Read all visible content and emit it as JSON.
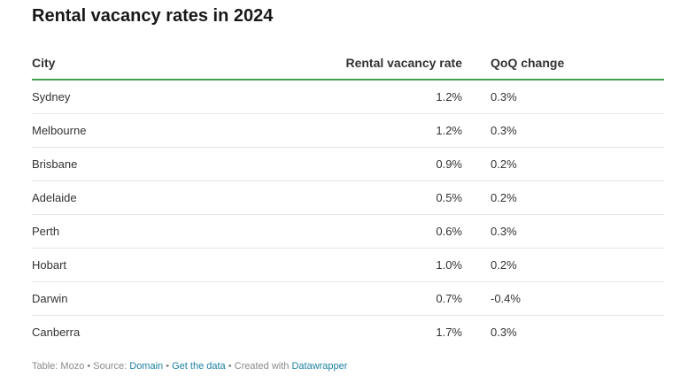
{
  "chart_data": {
    "type": "table",
    "title": "Rental vacancy rates in 2024",
    "columns": [
      "City",
      "Rental vacancy rate",
      "QoQ change"
    ],
    "rows": [
      {
        "city": "Sydney",
        "rate": "1.2%",
        "qoq": "0.3%"
      },
      {
        "city": "Melbourne",
        "rate": "1.2%",
        "qoq": "0.3%"
      },
      {
        "city": "Brisbane",
        "rate": "0.9%",
        "qoq": "0.2%"
      },
      {
        "city": "Adelaide",
        "rate": "0.5%",
        "qoq": "0.2%"
      },
      {
        "city": "Perth",
        "rate": "0.6%",
        "qoq": "0.3%"
      },
      {
        "city": "Hobart",
        "rate": "1.0%",
        "qoq": "0.2%"
      },
      {
        "city": "Darwin",
        "rate": "0.7%",
        "qoq": "-0.4%"
      },
      {
        "city": "Canberra",
        "rate": "1.7%",
        "qoq": "0.3%"
      }
    ]
  },
  "footer": {
    "table_label": "Table: Mozo",
    "sep": " • ",
    "source_label": "Source: ",
    "source_link": "Domain",
    "get_data": "Get the data",
    "created_with": "Created with ",
    "tool_link": "Datawrapper"
  },
  "colors": {
    "header_rule": "#3aa24a",
    "link": "#1d81a2"
  }
}
